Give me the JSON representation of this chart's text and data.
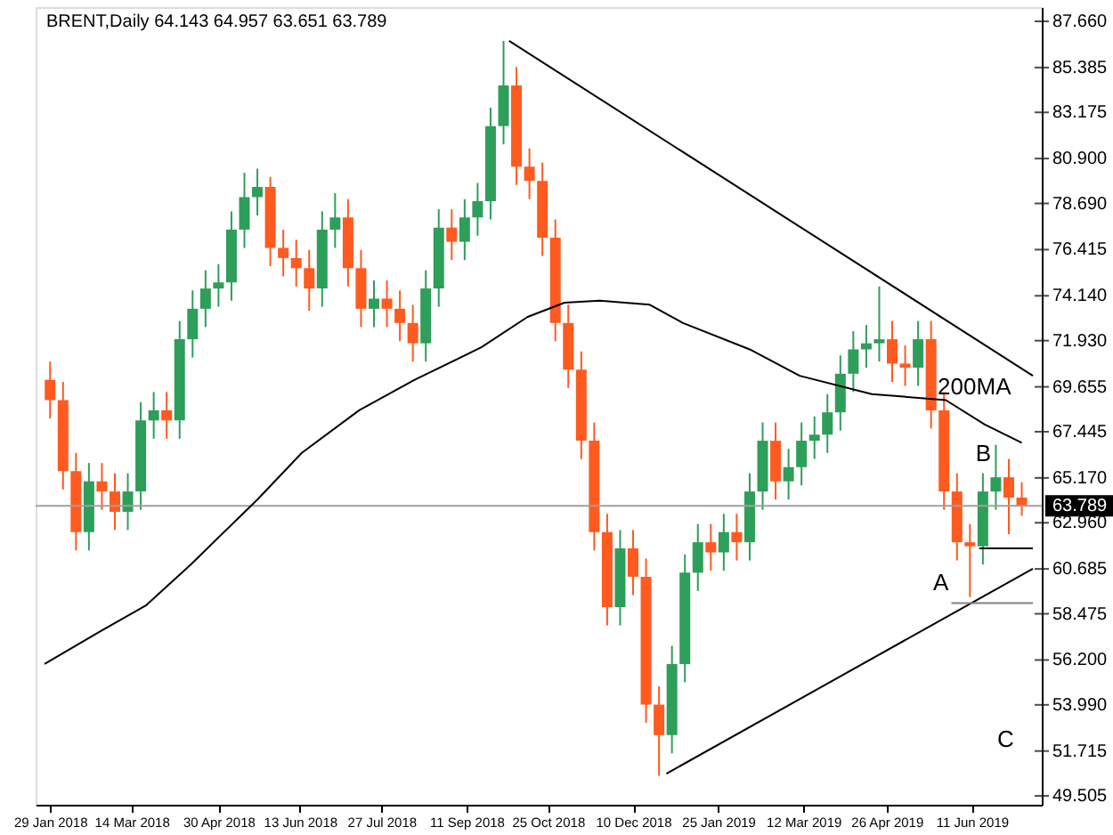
{
  "chart_data": {
    "type": "candlestick",
    "title": "BRENT,Daily 64.143 64.957 63.651 63.789",
    "x": [
      "2018-01-29",
      "2018-02-05",
      "2018-02-12",
      "2018-02-19",
      "2018-02-26",
      "2018-03-05",
      "2018-03-12",
      "2018-03-19",
      "2018-03-26",
      "2018-04-02",
      "2018-04-09",
      "2018-04-16",
      "2018-04-23",
      "2018-04-30",
      "2018-05-07",
      "2018-05-14",
      "2018-05-21",
      "2018-05-28",
      "2018-06-04",
      "2018-06-11",
      "2018-06-18",
      "2018-06-25",
      "2018-07-02",
      "2018-07-09",
      "2018-07-16",
      "2018-07-23",
      "2018-07-30",
      "2018-08-06",
      "2018-08-13",
      "2018-08-20",
      "2018-08-27",
      "2018-09-03",
      "2018-09-10",
      "2018-09-17",
      "2018-09-24",
      "2018-10-01",
      "2018-10-08",
      "2018-10-15",
      "2018-10-22",
      "2018-10-29",
      "2018-11-05",
      "2018-11-12",
      "2018-11-19",
      "2018-11-26",
      "2018-12-03",
      "2018-12-10",
      "2018-12-17",
      "2018-12-24",
      "2018-12-31",
      "2019-01-07",
      "2019-01-14",
      "2019-01-21",
      "2019-01-28",
      "2019-02-04",
      "2019-02-11",
      "2019-02-18",
      "2019-02-25",
      "2019-03-04",
      "2019-03-11",
      "2019-03-18",
      "2019-03-25",
      "2019-04-01",
      "2019-04-08",
      "2019-04-15",
      "2019-04-22",
      "2019-04-29",
      "2019-05-06",
      "2019-05-13",
      "2019-05-20",
      "2019-05-27",
      "2019-06-03",
      "2019-06-10",
      "2019-06-17",
      "2019-06-24",
      "2019-07-01",
      "2019-07-08"
    ],
    "ohlc": [
      [
        70.0,
        70.9,
        68.1,
        69.0
      ],
      [
        69.0,
        69.9,
        64.6,
        65.5
      ],
      [
        65.5,
        66.4,
        61.6,
        62.5
      ],
      [
        62.5,
        65.9,
        61.6,
        65.0
      ],
      [
        65.0,
        65.9,
        63.6,
        64.5
      ],
      [
        64.5,
        65.4,
        62.6,
        63.5
      ],
      [
        63.5,
        65.4,
        62.6,
        64.5
      ],
      [
        64.5,
        68.9,
        63.6,
        68.0
      ],
      [
        68.0,
        69.4,
        67.1,
        68.5
      ],
      [
        68.5,
        69.4,
        67.1,
        68.0
      ],
      [
        68.0,
        72.9,
        67.1,
        72.0
      ],
      [
        72.0,
        74.4,
        71.1,
        73.5
      ],
      [
        73.5,
        75.4,
        72.6,
        74.5
      ],
      [
        74.5,
        75.7,
        73.6,
        74.8
      ],
      [
        74.8,
        78.3,
        73.9,
        77.4
      ],
      [
        77.4,
        80.2,
        76.5,
        79.0
      ],
      [
        79.0,
        80.4,
        78.1,
        79.5
      ],
      [
        79.5,
        80.0,
        75.6,
        76.5
      ],
      [
        76.5,
        77.4,
        75.1,
        76.0
      ],
      [
        76.0,
        76.9,
        74.6,
        75.5
      ],
      [
        75.5,
        76.4,
        73.4,
        74.5
      ],
      [
        74.5,
        78.3,
        73.6,
        77.4
      ],
      [
        77.4,
        79.2,
        76.5,
        78.0
      ],
      [
        78.0,
        78.9,
        74.6,
        75.5
      ],
      [
        75.5,
        76.4,
        72.6,
        73.5
      ],
      [
        73.5,
        74.9,
        72.6,
        74.0
      ],
      [
        74.0,
        74.9,
        72.6,
        73.5
      ],
      [
        73.5,
        74.4,
        71.9,
        72.8
      ],
      [
        72.8,
        73.7,
        70.9,
        71.8
      ],
      [
        71.8,
        75.4,
        70.9,
        74.5
      ],
      [
        74.5,
        78.4,
        73.6,
        77.5
      ],
      [
        77.5,
        78.4,
        75.9,
        76.8
      ],
      [
        76.8,
        78.9,
        75.9,
        78.0
      ],
      [
        78.0,
        79.7,
        77.1,
        78.8
      ],
      [
        78.8,
        83.4,
        77.9,
        82.5
      ],
      [
        82.5,
        86.7,
        81.6,
        84.5
      ],
      [
        84.5,
        85.4,
        79.6,
        80.5
      ],
      [
        80.5,
        81.4,
        78.9,
        79.8
      ],
      [
        79.8,
        80.7,
        76.1,
        77.0
      ],
      [
        77.0,
        77.9,
        71.9,
        72.8
      ],
      [
        72.8,
        73.7,
        69.6,
        70.5
      ],
      [
        70.5,
        71.4,
        66.1,
        67.0
      ],
      [
        67.0,
        67.9,
        61.6,
        62.5
      ],
      [
        62.5,
        63.4,
        57.9,
        58.8
      ],
      [
        58.8,
        62.6,
        57.9,
        61.7
      ],
      [
        61.7,
        62.6,
        59.4,
        60.3
      ],
      [
        60.3,
        61.2,
        53.1,
        54.0
      ],
      [
        54.0,
        54.9,
        50.5,
        52.5
      ],
      [
        52.5,
        56.9,
        51.6,
        56.0
      ],
      [
        56.0,
        61.4,
        55.1,
        60.5
      ],
      [
        60.5,
        62.9,
        59.6,
        62.0
      ],
      [
        62.0,
        62.9,
        60.6,
        61.5
      ],
      [
        61.5,
        63.4,
        60.6,
        62.5
      ],
      [
        62.5,
        63.4,
        61.1,
        62.0
      ],
      [
        62.0,
        65.4,
        61.1,
        64.5
      ],
      [
        64.5,
        67.9,
        63.6,
        67.0
      ],
      [
        67.0,
        67.9,
        64.1,
        65.0
      ],
      [
        65.0,
        66.6,
        64.1,
        65.7
      ],
      [
        65.7,
        67.9,
        64.8,
        67.0
      ],
      [
        67.0,
        68.2,
        66.1,
        67.3
      ],
      [
        67.3,
        69.3,
        66.4,
        68.4
      ],
      [
        68.4,
        71.2,
        67.5,
        70.3
      ],
      [
        70.3,
        72.4,
        69.4,
        71.5
      ],
      [
        71.5,
        72.7,
        70.6,
        71.8
      ],
      [
        71.8,
        74.6,
        70.9,
        72.0
      ],
      [
        72.0,
        72.9,
        69.9,
        70.8
      ],
      [
        70.8,
        71.7,
        69.7,
        70.6
      ],
      [
        70.6,
        72.9,
        69.7,
        72.0
      ],
      [
        72.0,
        72.9,
        67.6,
        68.5
      ],
      [
        68.5,
        69.4,
        63.6,
        64.5
      ],
      [
        64.5,
        65.4,
        61.1,
        62.0
      ],
      [
        62.0,
        62.9,
        59.3,
        61.8
      ],
      [
        61.8,
        65.4,
        60.9,
        64.5
      ],
      [
        64.5,
        66.8,
        63.6,
        65.2
      ],
      [
        65.2,
        66.1,
        62.4,
        64.2
      ],
      [
        64.2,
        64.957,
        63.3,
        63.789
      ]
    ],
    "colors": [
      "#ff5a1f",
      "#ff5a1f",
      "#ff5a1f",
      "#2e9e5b",
      "#ff5a1f",
      "#ff5a1f",
      "#2e9e5b",
      "#2e9e5b",
      "#2e9e5b",
      "#ff5a1f",
      "#2e9e5b",
      "#2e9e5b",
      "#2e9e5b",
      "#2e9e5b",
      "#2e9e5b",
      "#2e9e5b",
      "#2e9e5b",
      "#ff5a1f",
      "#ff5a1f",
      "#ff5a1f",
      "#ff5a1f",
      "#2e9e5b",
      "#2e9e5b",
      "#ff5a1f",
      "#ff5a1f",
      "#2e9e5b",
      "#ff5a1f",
      "#ff5a1f",
      "#ff5a1f",
      "#2e9e5b",
      "#2e9e5b",
      "#ff5a1f",
      "#2e9e5b",
      "#2e9e5b",
      "#2e9e5b",
      "#2e9e5b",
      "#ff5a1f",
      "#ff5a1f",
      "#ff5a1f",
      "#ff5a1f",
      "#ff5a1f",
      "#ff5a1f",
      "#ff5a1f",
      "#ff5a1f",
      "#2e9e5b",
      "#ff5a1f",
      "#ff5a1f",
      "#ff5a1f",
      "#2e9e5b",
      "#2e9e5b",
      "#2e9e5b",
      "#ff5a1f",
      "#2e9e5b",
      "#ff5a1f",
      "#2e9e5b",
      "#2e9e5b",
      "#ff5a1f",
      "#2e9e5b",
      "#2e9e5b",
      "#2e9e5b",
      "#2e9e5b",
      "#2e9e5b",
      "#2e9e5b",
      "#2e9e5b",
      "#2e9e5b",
      "#ff5a1f",
      "#ff5a1f",
      "#2e9e5b",
      "#ff5a1f",
      "#ff5a1f",
      "#ff5a1f",
      "#ff5a1f",
      "#2e9e5b",
      "#2e9e5b",
      "#ff5a1f",
      "#ff5a1f"
    ],
    "series": [
      {
        "type": "line",
        "name": "200MA",
        "color": "#000000",
        "x": [
          "2018-01-26",
          "2018-02-25",
          "2018-03-22",
          "2018-04-15",
          "2018-05-21",
          "2018-06-14",
          "2018-07-15",
          "2018-08-14",
          "2018-09-19",
          "2018-10-14",
          "2018-11-03",
          "2018-11-22",
          "2018-12-19",
          "2019-01-06",
          "2019-02-11",
          "2019-03-10",
          "2019-04-18",
          "2019-05-28",
          "2019-06-18",
          "2019-07-08"
        ],
        "values": [
          56.0,
          57.6,
          58.9,
          60.9,
          64.1,
          66.4,
          68.5,
          70.0,
          71.6,
          73.1,
          73.8,
          73.9,
          73.7,
          72.8,
          71.5,
          70.2,
          69.3,
          69.0,
          67.8,
          66.9
        ]
      },
      {
        "type": "line",
        "color": "#000000",
        "x": [
          "2018-10-04",
          "2019-07-14"
        ],
        "values": [
          86.7,
          70.2
        ]
      },
      {
        "type": "line",
        "color": "#000000",
        "x": [
          "2018-12-28",
          "2019-07-14"
        ],
        "values": [
          50.6,
          60.7
        ]
      },
      {
        "type": "line",
        "color": "#000000",
        "x": [
          "2019-06-15",
          "2019-07-14"
        ],
        "values": [
          61.7,
          61.7
        ]
      },
      {
        "type": "line",
        "color": "#808080",
        "x": [
          "2019-05-31",
          "2019-07-14"
        ],
        "values": [
          59.0,
          59.0
        ]
      }
    ],
    "ref_lines": [
      {
        "axis": "y",
        "value": 63.789,
        "label": "63.789",
        "color": "#a0a0a0"
      }
    ],
    "annotations": [
      {
        "text": "A",
        "x": "2019-06-03",
        "y": 59.3
      },
      "B",
      "C"
    ],
    "xlim": [
      "2018-01-26",
      "2019-07-14"
    ],
    "xticks": [
      {
        "value": "2018-01-29",
        "label": "29 Jan 2018"
      },
      {
        "value": "2018-03-14",
        "label": "14 Mar 2018"
      },
      {
        "value": "2018-04-30",
        "label": "30 Apr 2018"
      },
      {
        "value": "2018-06-13",
        "label": "13 Jun 2018"
      },
      {
        "value": "2018-07-27",
        "label": "27 Jul 2018"
      },
      {
        "value": "2018-09-11",
        "label": "11 Sep 2018"
      },
      {
        "value": "2018-10-25",
        "label": "25 Oct 2018"
      },
      {
        "value": "2018-12-10",
        "label": "10 Dec 2018"
      },
      {
        "value": "2019-01-25",
        "label": "25 Jan 2019"
      },
      {
        "value": "2019-03-12",
        "label": "12 Mar 2019"
      },
      {
        "value": "2019-04-26",
        "label": "26 Apr 2019"
      },
      {
        "value": "2019-06-11",
        "label": "11 Jun 2019"
      }
    ],
    "ylim": [
      49.07,
      88.36
    ],
    "yticks": [
      {
        "value": 87.66,
        "label": "87.660"
      },
      85.385,
      83.175,
      {
        "value": 80.9,
        "label": "80.900"
      },
      {
        "value": 78.69,
        "label": "78.690"
      },
      76.415,
      {
        "value": 74.14,
        "label": "74.140"
      },
      {
        "value": 71.93,
        "label": "71.930"
      },
      69.655,
      67.445,
      {
        "value": 65.17,
        "label": "65.170"
      },
      {
        "value": 62.96,
        "label": "62.960"
      },
      60.685,
      58.475,
      {
        "value": 56.2,
        "label": "56.200"
      },
      {
        "value": 53.99,
        "label": "53.990"
      },
      51.715,
      49.505
    ],
    "grid": false
  }
}
